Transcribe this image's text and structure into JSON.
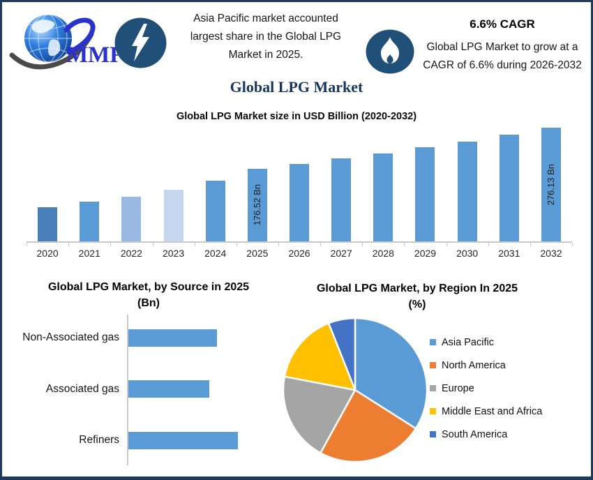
{
  "header": {
    "logo_text": "MMR",
    "left_callout": {
      "lines": [
        "Asia Pacific market accounted",
        "largest share in the Global LPG",
        "Market in 2025."
      ]
    },
    "right_callout": {
      "heading": "6.6% CAGR",
      "lines": [
        "Global LPG Market to grow at a",
        "CAGR of 6.6% during 2026-2032"
      ]
    }
  },
  "page_title": "Global LPG Market",
  "theme": {
    "border_color": "#1f3a5c",
    "badge_color": "#205078",
    "title_color": "#17365d",
    "accent_blue": "#5b9bd5",
    "axis_color": "#c9c9c9"
  },
  "chart_data": [
    {
      "type": "bar",
      "title": "Global LPG Market size in USD Billion (2020-2032)",
      "ylabel": "USD Billion",
      "categories": [
        "2020",
        "2021",
        "2022",
        "2023",
        "2024",
        "2025",
        "2026",
        "2027",
        "2028",
        "2029",
        "2030",
        "2031",
        "2032"
      ],
      "values": [
        83,
        96,
        108,
        126,
        147,
        176.52,
        188,
        201,
        214,
        228,
        243,
        259,
        276.13
      ],
      "data_labels": {
        "2025": "176.52 Bn",
        "2032": "276.13 Bn"
      },
      "bar_colors": [
        "#4a80ba",
        "#5b9bd5",
        "#97b9e2",
        "#c5d7ee",
        "#5b9bd5",
        "#5b9bd5",
        "#5b9bd5",
        "#5b9bd5",
        "#5b9bd5",
        "#5b9bd5",
        "#5b9bd5",
        "#5b9bd5",
        "#5b9bd5"
      ],
      "ylim": [
        0,
        280
      ],
      "grid": false,
      "legend": false
    },
    {
      "type": "bar-horizontal",
      "title": "Global LPG Market, by Source in 2025",
      "subtitle": "(Bn)",
      "categories": [
        "Non-Associated gas",
        "Associated gas",
        "Refiners"
      ],
      "values": [
        56,
        51,
        69
      ],
      "bar_color": "#5b9bd5",
      "grid": false,
      "legend": false
    },
    {
      "type": "pie",
      "title": "Global LPG Market, by Region In 2025",
      "subtitle": "(%)",
      "legend_position": "right",
      "slices": [
        {
          "label": "Asia Pacific",
          "value": 34,
          "color": "#5b9bd5"
        },
        {
          "label": "North America",
          "value": 24,
          "color": "#ed7d31"
        },
        {
          "label": "Europe",
          "value": 20,
          "color": "#a5a5a5"
        },
        {
          "label": "Middle East and Africa",
          "value": 16,
          "color": "#ffc000"
        },
        {
          "label": "South America",
          "value": 6,
          "color": "#4472c4"
        }
      ]
    }
  ]
}
